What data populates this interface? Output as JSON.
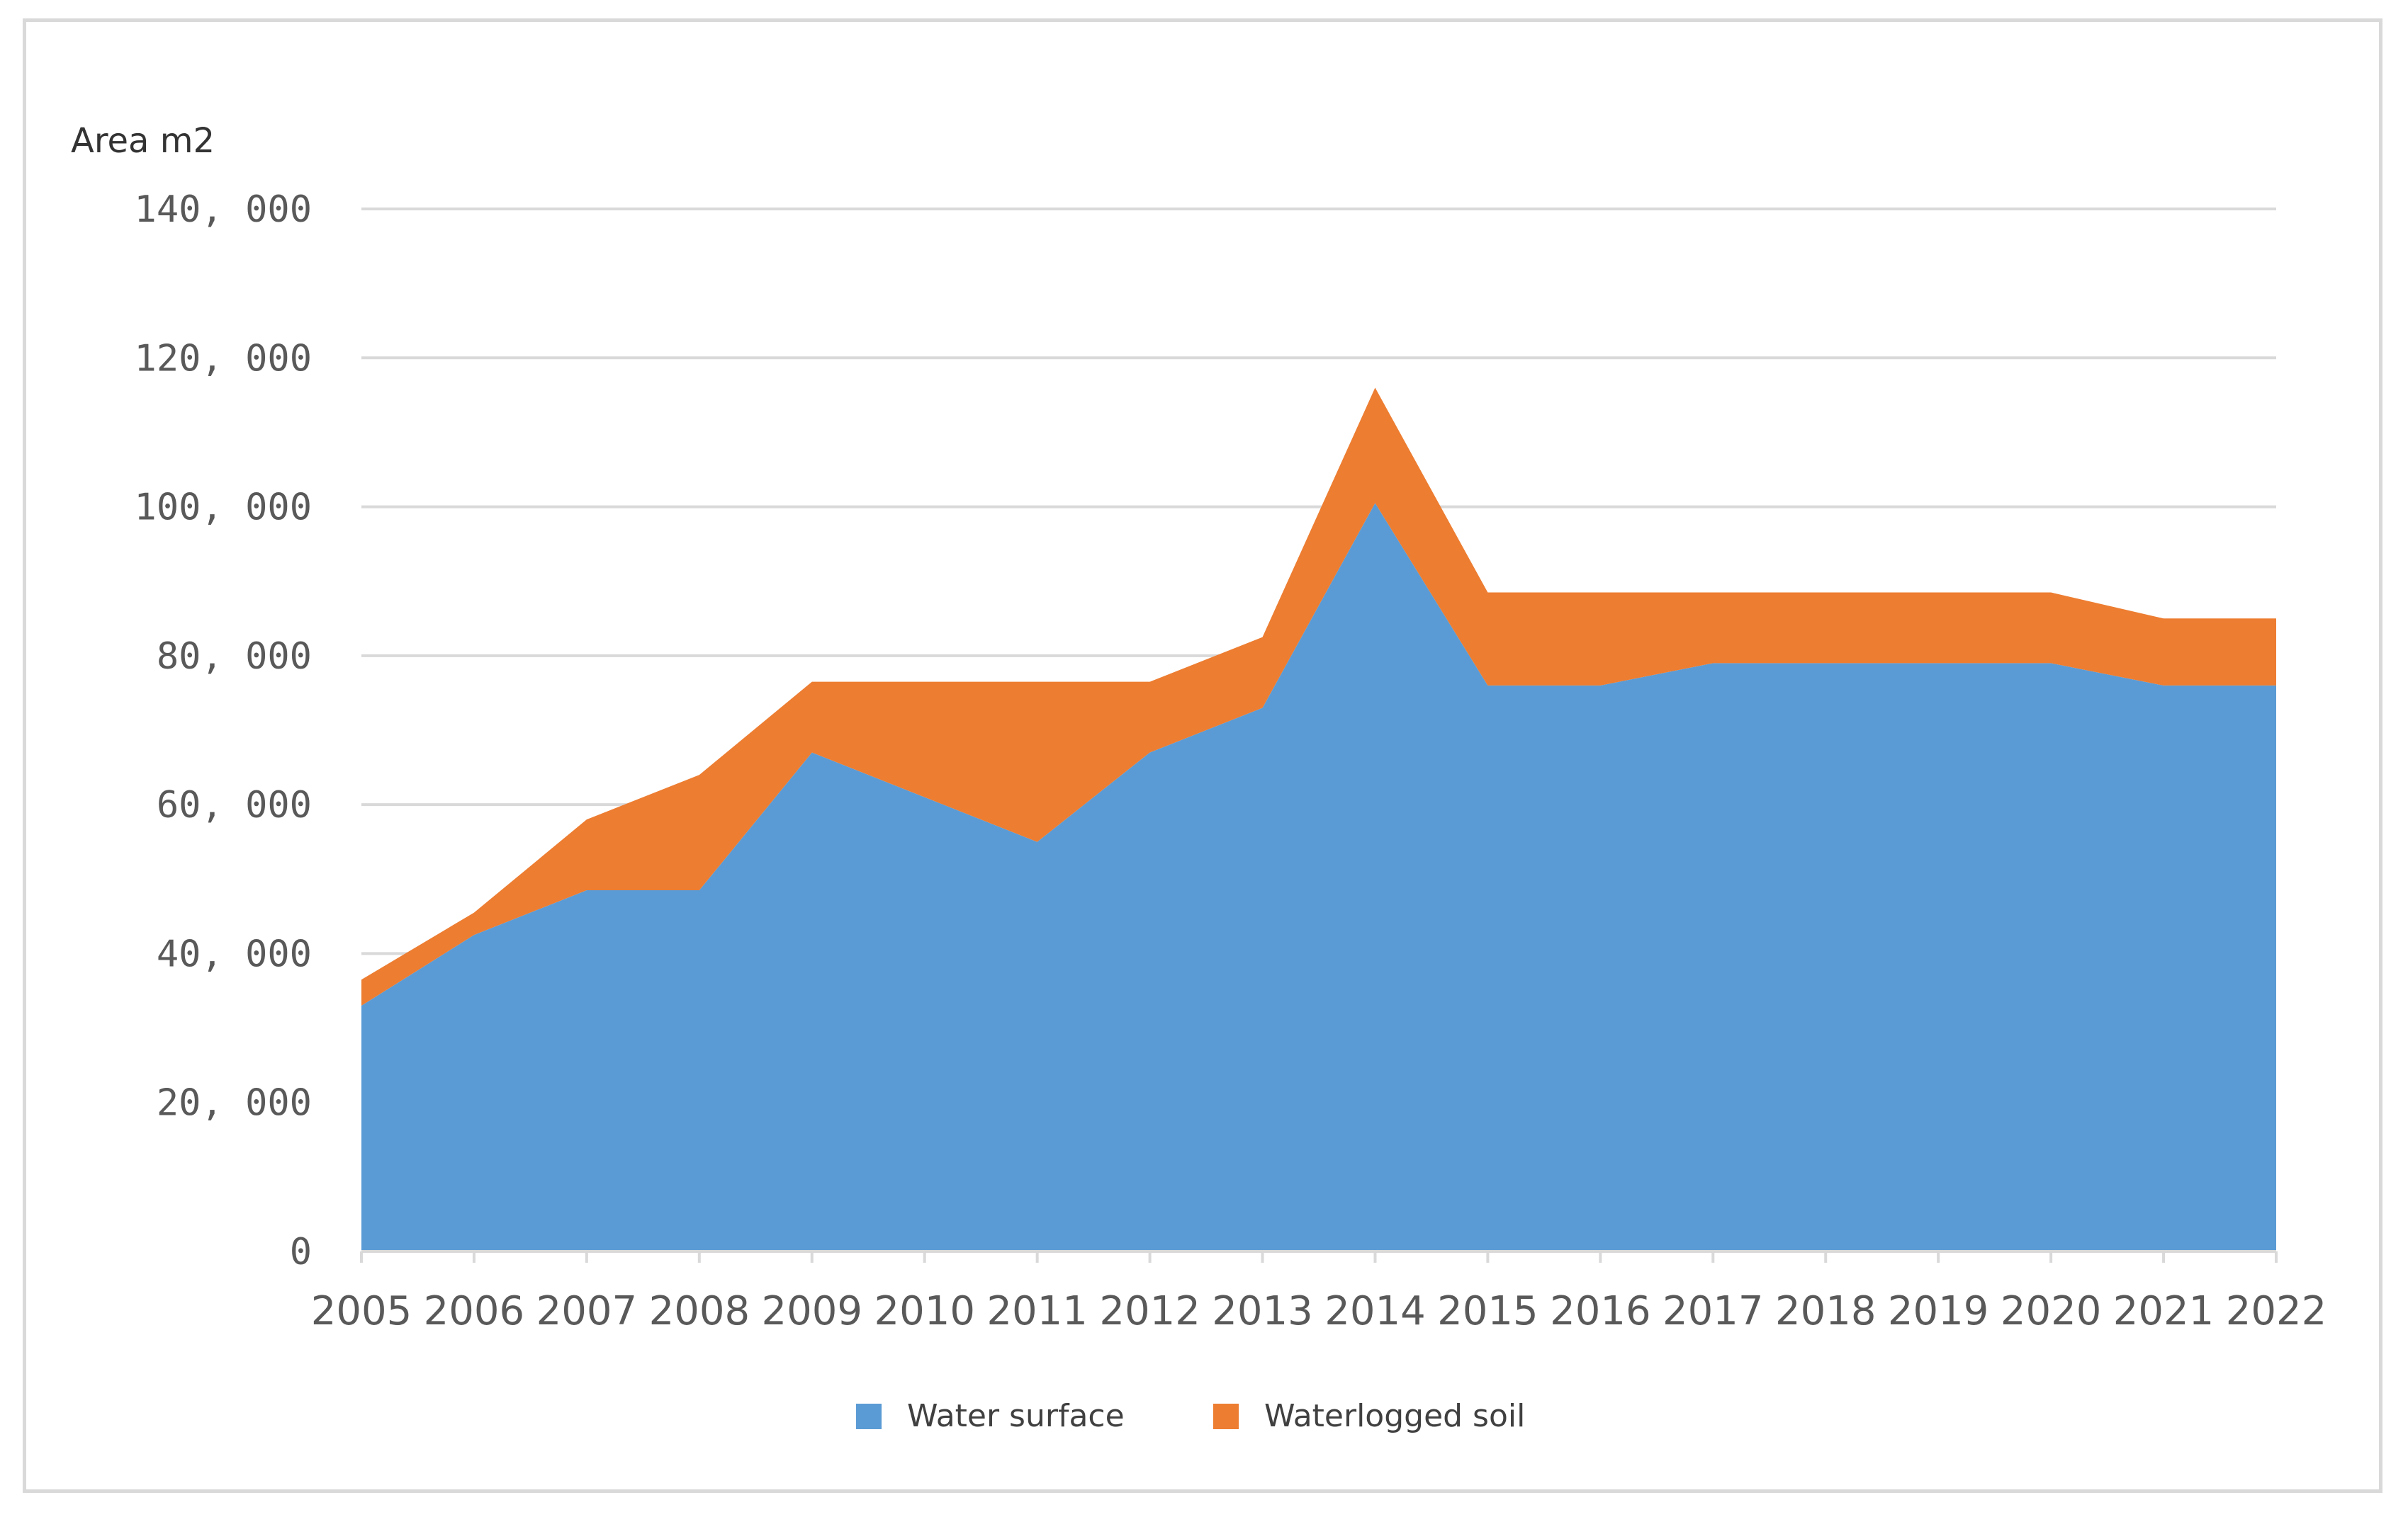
{
  "chart_data": {
    "type": "area",
    "stacked": true,
    "title": "",
    "ylabel": "Area m2",
    "xlabel": "",
    "categories": [
      "2005",
      "2006",
      "2007",
      "2008",
      "2009",
      "2010",
      "2011",
      "2012",
      "2013",
      "2014",
      "2015",
      "2016",
      "2017",
      "2018",
      "2019",
      "2020",
      "2021",
      "2022"
    ],
    "series": [
      {
        "name": "Water surface",
        "color": "#5b9bd5",
        "values": [
          33000,
          42500,
          48500,
          48500,
          67000,
          61000,
          55000,
          67000,
          73000,
          100500,
          76000,
          76000,
          79000,
          79000,
          79000,
          79000,
          76000,
          76000
        ]
      },
      {
        "name": "Waterlogged soil",
        "color": "#ed7d31",
        "values": [
          3500,
          3000,
          9500,
          15500,
          9500,
          15500,
          21500,
          9500,
          9500,
          15500,
          12500,
          12500,
          9500,
          9500,
          9500,
          9500,
          9000,
          9000
        ]
      }
    ],
    "ylim": [
      0,
      140000
    ],
    "yticks": [
      0,
      20000,
      40000,
      60000,
      80000,
      100000,
      120000,
      140000
    ],
    "ytick_labels": [
      "0",
      "20, 000",
      "40, 000",
      "60, 000",
      "80, 000",
      "100, 000",
      "120, 000",
      "140, 000"
    ],
    "grid": true,
    "gridline_color": "#d9d9d9",
    "legend_position": "bottom"
  }
}
